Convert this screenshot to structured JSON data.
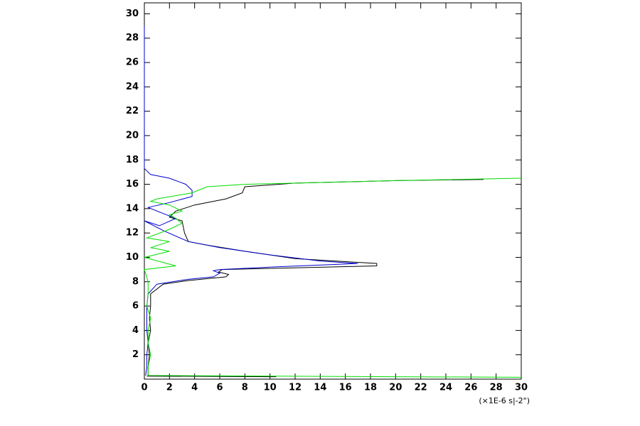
{
  "chart_data": {
    "type": "line",
    "x_unit_label": "(×1E-6 s|-2\")",
    "xlim": [
      0,
      30
    ],
    "ylim": [
      0,
      30.9
    ],
    "xticks": [
      0,
      2,
      4,
      6,
      8,
      10,
      12,
      14,
      16,
      18,
      20,
      22,
      24,
      26,
      28,
      30
    ],
    "yticks": [
      2,
      4,
      6,
      8,
      10,
      12,
      14,
      16,
      18,
      20,
      22,
      24,
      26,
      28,
      30
    ],
    "series": [
      {
        "color": "#000000",
        "x": [
          0.2,
          10.5,
          0.3,
          0.3,
          0.4,
          0.3,
          0.5,
          0.4,
          0.5,
          0.5,
          1.5,
          3.5,
          6.5,
          6.7,
          5.9,
          6.2,
          18.5,
          18.5,
          12,
          8,
          5,
          3.5,
          3.2,
          3,
          2,
          2.5,
          4,
          6.5,
          7.8,
          8,
          12,
          20,
          27
        ],
        "y": [
          0.25,
          0.2,
          0.3,
          1,
          2,
          3,
          4,
          5,
          6,
          7,
          7.8,
          8.1,
          8.4,
          8.6,
          8.8,
          9.0,
          9.3,
          9.5,
          9.9,
          10.5,
          11,
          11.3,
          12,
          13,
          13.3,
          13.8,
          14.3,
          14.8,
          15.3,
          15.8,
          16.1,
          16.3,
          16.4
        ]
      },
      {
        "color": "#0000cc",
        "x": [
          0.1,
          0.2,
          0.2,
          0.3,
          0.2,
          0.2,
          0.2,
          0.3,
          1,
          3.5,
          5.5,
          6,
          5.5,
          6,
          10,
          17,
          14,
          10,
          8,
          6,
          3.5,
          1.5,
          0,
          1.2,
          2.5,
          1.5,
          0.3,
          2,
          3.8,
          3.8,
          3.3,
          2,
          0.5,
          0,
          0,
          0,
          0
        ],
        "y": [
          0.3,
          1,
          2,
          3,
          4,
          5,
          6,
          7,
          7.8,
          8.2,
          8.4,
          8.7,
          8.9,
          9.0,
          9.2,
          9.5,
          9.7,
          10.2,
          10.5,
          10.8,
          11.3,
          12.2,
          13,
          12.6,
          13.2,
          13.6,
          14.1,
          14.5,
          15,
          15.5,
          16,
          16.5,
          16.8,
          17.3,
          23,
          27,
          29
        ]
      },
      {
        "color": "#00dd00",
        "x": [
          30,
          0.3,
          0.3,
          0.5,
          0.3,
          0.3,
          0.5,
          0.2,
          0.3,
          0.3,
          0,
          2.5,
          0,
          2,
          0.5,
          2,
          0.2,
          2,
          3,
          2.5,
          2,
          3,
          2,
          0.5,
          1,
          3.8,
          5,
          8,
          20,
          30
        ],
        "y": [
          0.15,
          0.3,
          1,
          2,
          3,
          4,
          5,
          6,
          7,
          8,
          9,
          9.3,
          10,
          10.5,
          10.8,
          11.3,
          11.6,
          12.3,
          12.8,
          13.2,
          13.5,
          13.8,
          14.3,
          14.6,
          14.8,
          15.3,
          15.8,
          16.0,
          16.3,
          16.5
        ]
      }
    ]
  }
}
